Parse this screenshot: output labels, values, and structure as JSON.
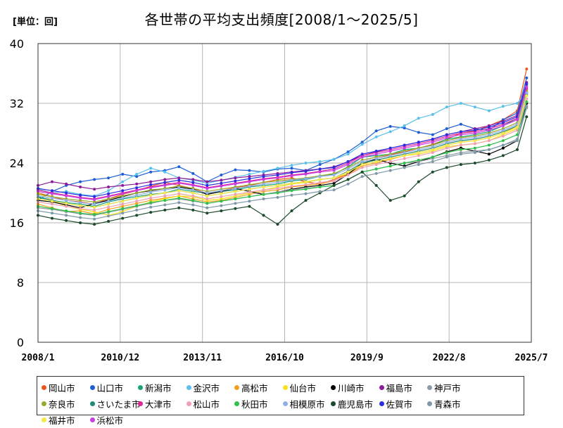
{
  "unit_label": "[単位：回]",
  "title": "各世帯の平均支出頻度[2008/1～2025/5]",
  "chart_data": {
    "type": "line",
    "title": "各世帯の平均支出頻度[2008/1～2025/5]",
    "unit": "回",
    "ylim": [
      0,
      40
    ],
    "yticks": [
      0,
      8,
      16,
      24,
      32,
      40
    ],
    "xrange": [
      "2008/1",
      "2025/7"
    ],
    "xticks": [
      "2008/1",
      "2010/12",
      "2013/11",
      "2016/10",
      "2019/9",
      "2022/8",
      "2025/7"
    ],
    "grid": true,
    "legend_position": "bottom",
    "x": [
      "2008/1",
      "2008/7",
      "2009/1",
      "2009/7",
      "2010/1",
      "2010/7",
      "2011/1",
      "2011/7",
      "2012/1",
      "2012/7",
      "2013/1",
      "2013/7",
      "2014/1",
      "2014/7",
      "2015/1",
      "2015/7",
      "2016/1",
      "2016/7",
      "2017/1",
      "2017/7",
      "2018/1",
      "2018/7",
      "2019/1",
      "2019/7",
      "2020/1",
      "2020/7",
      "2021/1",
      "2021/7",
      "2022/1",
      "2022/7",
      "2023/1",
      "2023/7",
      "2024/1",
      "2024/7",
      "2025/1",
      "2025/5"
    ],
    "series": [
      {
        "name": "岡山市",
        "color": "#f0541e",
        "values": [
          20.0,
          19.5,
          19.0,
          18.8,
          18.5,
          19.2,
          19.8,
          20.3,
          20.9,
          21.4,
          21.0,
          20.6,
          19.9,
          20.3,
          20.7,
          21.0,
          21.4,
          21.8,
          22.0,
          21.5,
          21.2,
          21.8,
          22.6,
          23.8,
          24.6,
          25.1,
          25.5,
          26.0,
          26.5,
          27.2,
          28.0,
          28.3,
          29.0,
          29.8,
          31.0,
          36.6
        ]
      },
      {
        "name": "山口市",
        "color": "#1f5fd6",
        "values": [
          19.0,
          20.2,
          21.0,
          21.5,
          21.8,
          22.0,
          22.5,
          22.2,
          22.8,
          23.0,
          23.5,
          22.6,
          21.5,
          22.4,
          23.1,
          23.0,
          22.8,
          23.2,
          23.3,
          23.0,
          23.8,
          24.5,
          25.5,
          26.8,
          28.3,
          28.9,
          28.7,
          28.1,
          27.8,
          28.6,
          29.2,
          28.6,
          28.4,
          29.8,
          30.7,
          35.4
        ]
      },
      {
        "name": "新潟市",
        "color": "#1aa37a",
        "values": [
          19.5,
          19.0,
          18.7,
          18.5,
          18.2,
          18.8,
          19.2,
          19.5,
          19.8,
          20.0,
          20.5,
          20.2,
          20.0,
          20.2,
          20.4,
          20.8,
          21.0,
          21.2,
          21.6,
          21.8,
          22.2,
          22.5,
          23.5,
          24.8,
          25.0,
          25.2,
          25.8,
          26.0,
          26.4,
          27.2,
          27.5,
          27.8,
          28.2,
          29.0,
          30.0,
          34.4
        ]
      },
      {
        "name": "金沢市",
        "color": "#5bc0eb",
        "values": [
          20.5,
          20.0,
          20.2,
          19.8,
          19.6,
          20.3,
          21.5,
          22.5,
          23.3,
          22.8,
          22.0,
          21.7,
          21.3,
          21.7,
          22.1,
          22.5,
          22.9,
          23.3,
          23.7,
          24.0,
          24.2,
          24.5,
          25.2,
          26.5,
          27.5,
          28.2,
          29.0,
          30.0,
          30.5,
          31.5,
          32.0,
          31.5,
          31.0,
          31.6,
          32.0,
          33.5
        ]
      },
      {
        "name": "高松市",
        "color": "#f2a11f",
        "values": [
          18.5,
          18.0,
          17.5,
          17.6,
          17.2,
          17.8,
          18.2,
          18.6,
          19.0,
          19.3,
          19.6,
          19.2,
          18.8,
          19.0,
          19.4,
          19.8,
          20.2,
          20.4,
          20.8,
          21.0,
          21.2,
          21.6,
          22.5,
          23.6,
          24.0,
          24.5,
          25.0,
          25.4,
          25.8,
          26.4,
          26.8,
          27.0,
          27.4,
          28.0,
          29.0,
          33.6
        ]
      },
      {
        "name": "仙台市",
        "color": "#f5e21a",
        "values": [
          20.0,
          19.0,
          18.2,
          17.8,
          17.5,
          17.0,
          17.5,
          18.2,
          18.8,
          19.2,
          19.6,
          19.5,
          19.0,
          19.2,
          19.6,
          20.0,
          20.4,
          20.8,
          21.2,
          21.4,
          21.8,
          22.0,
          22.6,
          23.8,
          24.2,
          24.6,
          25.0,
          25.2,
          25.6,
          26.2,
          26.4,
          26.6,
          27.0,
          27.8,
          28.6,
          33.0
        ]
      },
      {
        "name": "川崎市",
        "color": "#000000",
        "values": [
          19.0,
          18.8,
          18.4,
          18.0,
          18.6,
          19.0,
          19.5,
          20.0,
          20.3,
          20.6,
          20.8,
          20.5,
          19.8,
          20.2,
          20.6,
          20.2,
          19.8,
          20.1,
          20.5,
          20.8,
          21.0,
          21.3,
          22.5,
          24.0,
          24.5,
          24.0,
          23.6,
          24.2,
          24.8,
          25.5,
          26.0,
          25.6,
          25.2,
          26.0,
          27.0,
          32.0
        ]
      },
      {
        "name": "福島市",
        "color": "#8e1a9c",
        "values": [
          21.0,
          21.5,
          21.2,
          20.8,
          20.5,
          20.8,
          21.0,
          21.2,
          21.5,
          21.8,
          22.0,
          21.8,
          21.5,
          21.7,
          22.0,
          22.2,
          22.4,
          22.6,
          22.8,
          23.0,
          23.2,
          23.5,
          24.2,
          25.0,
          25.5,
          26.0,
          26.4,
          26.8,
          27.2,
          27.8,
          28.2,
          28.6,
          29.0,
          29.6,
          30.4,
          34.8
        ]
      },
      {
        "name": "神戸市",
        "color": "#8f9aa4",
        "values": [
          18.0,
          17.8,
          17.5,
          17.2,
          17.0,
          17.4,
          17.8,
          18.2,
          18.6,
          19.0,
          19.2,
          18.9,
          18.6,
          18.9,
          19.2,
          19.5,
          19.8,
          20.1,
          20.4,
          20.6,
          20.8,
          21.0,
          21.8,
          22.8,
          23.2,
          23.6,
          24.0,
          24.2,
          24.6,
          25.0,
          25.4,
          25.6,
          25.8,
          26.4,
          27.0,
          31.4
        ]
      },
      {
        "name": "奈良市",
        "color": "#9aa82b",
        "values": [
          19.8,
          19.5,
          19.2,
          19.0,
          18.8,
          19.2,
          19.6,
          20.0,
          20.4,
          20.6,
          20.9,
          20.6,
          20.2,
          20.5,
          20.8,
          21.1,
          21.4,
          21.6,
          21.8,
          22.0,
          22.3,
          22.6,
          23.4,
          24.4,
          24.8,
          25.2,
          25.6,
          26.0,
          26.4,
          27.0,
          27.4,
          27.6,
          28.0,
          28.6,
          29.4,
          33.8
        ]
      },
      {
        "name": "さいたま市",
        "color": "#1f8a78",
        "values": [
          19.4,
          19.0,
          18.6,
          18.3,
          18.1,
          18.5,
          18.9,
          19.3,
          19.7,
          20.0,
          20.3,
          20.0,
          19.6,
          19.9,
          20.2,
          20.5,
          20.8,
          21.0,
          21.3,
          21.5,
          21.8,
          22.0,
          22.9,
          24.0,
          24.4,
          24.8,
          25.2,
          25.6,
          26.0,
          26.6,
          27.0,
          27.2,
          27.6,
          28.2,
          29.0,
          33.2
        ]
      },
      {
        "name": "大津市",
        "color": "#e0249a",
        "values": [
          20.4,
          20.0,
          19.7,
          19.4,
          19.2,
          19.6,
          20.0,
          20.4,
          20.8,
          21.1,
          21.4,
          21.1,
          20.7,
          21.0,
          21.3,
          21.6,
          21.9,
          22.1,
          22.4,
          22.6,
          22.9,
          23.2,
          24.0,
          25.0,
          25.4,
          25.8,
          26.2,
          26.6,
          27.0,
          27.6,
          28.0,
          28.2,
          28.6,
          29.2,
          30.0,
          34.0
        ]
      },
      {
        "name": "松山市",
        "color": "#f0a0b4",
        "values": [
          18.8,
          18.5,
          18.2,
          17.9,
          17.7,
          18.1,
          18.5,
          18.9,
          19.3,
          19.6,
          19.9,
          19.6,
          19.2,
          19.5,
          19.8,
          20.1,
          20.4,
          20.6,
          20.9,
          21.1,
          21.4,
          21.6,
          22.4,
          23.4,
          23.8,
          24.2,
          24.6,
          25.0,
          25.4,
          26.0,
          26.4,
          26.6,
          27.0,
          27.6,
          28.4,
          32.6
        ]
      },
      {
        "name": "秋田市",
        "color": "#2fc24a",
        "values": [
          18.2,
          17.9,
          17.6,
          17.3,
          17.1,
          17.5,
          17.9,
          18.3,
          18.7,
          19.0,
          19.3,
          19.0,
          18.6,
          18.9,
          19.2,
          19.5,
          19.8,
          20.0,
          20.3,
          20.5,
          20.8,
          21.0,
          21.8,
          22.8,
          23.2,
          23.6,
          24.0,
          24.4,
          24.8,
          25.4,
          25.8,
          26.0,
          26.4,
          27.0,
          27.8,
          32.2
        ]
      },
      {
        "name": "相模原市",
        "color": "#8fb1e8",
        "values": [
          19.6,
          19.3,
          19.0,
          18.7,
          18.5,
          18.9,
          19.3,
          19.7,
          20.1,
          20.4,
          20.7,
          20.4,
          20.0,
          20.3,
          20.6,
          20.9,
          21.2,
          21.4,
          21.7,
          21.9,
          22.2,
          22.4,
          23.2,
          24.2,
          24.6,
          25.0,
          25.4,
          25.8,
          26.2,
          26.8,
          27.2,
          27.4,
          27.8,
          28.4,
          29.2,
          33.4
        ]
      },
      {
        "name": "鹿児島市",
        "color": "#1c4a2c",
        "values": [
          17.0,
          16.6,
          16.3,
          16.0,
          15.8,
          16.2,
          16.6,
          17.0,
          17.4,
          17.7,
          18.0,
          17.7,
          17.3,
          17.6,
          17.9,
          18.2,
          17.0,
          15.8,
          17.6,
          19.0,
          20.0,
          21.0,
          21.8,
          22.8,
          21.0,
          19.0,
          19.6,
          21.5,
          22.8,
          23.4,
          23.8,
          24.0,
          24.4,
          25.0,
          25.8,
          30.2
        ]
      },
      {
        "name": "佐賀市",
        "color": "#2a2ee0",
        "values": [
          20.6,
          20.3,
          20.0,
          19.7,
          19.5,
          19.9,
          20.3,
          20.7,
          21.1,
          21.4,
          21.7,
          21.4,
          21.0,
          21.3,
          21.6,
          21.9,
          22.2,
          22.4,
          22.7,
          22.9,
          23.2,
          23.4,
          24.2,
          25.2,
          25.6,
          26.0,
          26.4,
          26.8,
          27.2,
          27.8,
          28.2,
          28.4,
          28.8,
          29.4,
          30.2,
          34.6
        ]
      },
      {
        "name": "青森市",
        "color": "#7f98a8",
        "values": [
          17.6,
          17.3,
          17.0,
          16.7,
          16.5,
          16.9,
          17.3,
          17.7,
          18.1,
          18.4,
          18.7,
          18.4,
          18.0,
          18.3,
          18.6,
          18.9,
          19.2,
          19.4,
          19.7,
          19.9,
          20.2,
          20.4,
          21.2,
          22.2,
          22.6,
          23.0,
          23.4,
          23.8,
          24.2,
          24.8,
          25.2,
          25.4,
          25.8,
          26.4,
          27.2,
          31.6
        ]
      },
      {
        "name": "福井市",
        "color": "#f7e84a",
        "values": [
          19.2,
          18.9,
          18.6,
          18.3,
          18.1,
          18.5,
          18.9,
          19.3,
          19.7,
          20.0,
          20.3,
          20.0,
          19.6,
          19.9,
          20.2,
          20.5,
          20.8,
          21.0,
          21.3,
          21.5,
          21.8,
          22.0,
          22.8,
          23.8,
          24.2,
          24.6,
          25.0,
          25.4,
          25.8,
          26.4,
          26.8,
          27.0,
          27.4,
          28.0,
          28.8,
          33.0
        ]
      },
      {
        "name": "浜松市",
        "color": "#c93ce0",
        "values": [
          20.2,
          19.9,
          19.6,
          19.3,
          19.1,
          19.5,
          19.9,
          20.3,
          20.7,
          21.0,
          21.3,
          21.0,
          20.6,
          20.9,
          21.2,
          21.5,
          21.8,
          22.0,
          22.3,
          22.5,
          22.8,
          23.0,
          23.8,
          24.8,
          25.2,
          25.6,
          26.0,
          26.4,
          26.8,
          27.4,
          27.8,
          28.0,
          28.4,
          29.0,
          29.8,
          34.2
        ]
      }
    ]
  }
}
